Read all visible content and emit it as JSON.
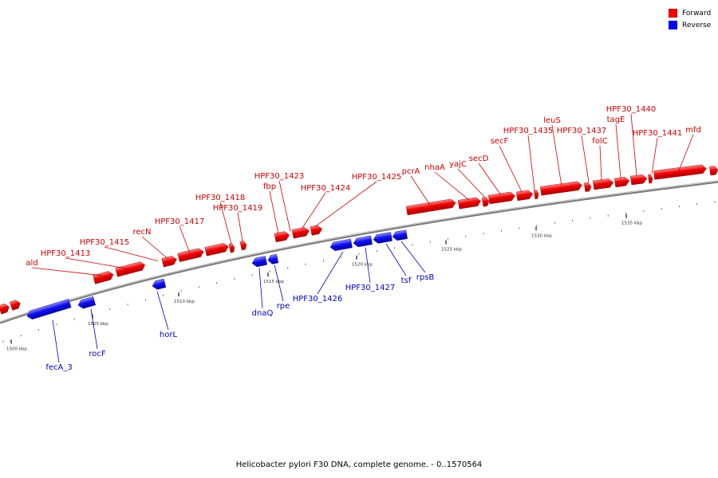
{
  "legend": {
    "forward_label": "Forward",
    "reverse_label": "Reverse",
    "forward_color": "#ff0000",
    "reverse_color": "#0000ff"
  },
  "caption": "Helicobacter pylori F30 DNA, complete genome. - 0..1570564",
  "ticks": [
    {
      "label": "1500 kbp",
      "pos": 1500
    },
    {
      "label": "1505 kbp",
      "pos": 1505
    },
    {
      "label": "1510 kbp",
      "pos": 1510
    },
    {
      "label": "1515 kbp",
      "pos": 1515
    },
    {
      "label": "1520 kbp",
      "pos": 1520
    },
    {
      "label": "1525 kbp",
      "pos": 1525
    },
    {
      "label": "1530 kbp",
      "pos": 1530
    },
    {
      "label": "1535 kbp",
      "pos": 1535
    }
  ],
  "forward_genes": [
    {
      "label": "ald"
    },
    {
      "label": "HPF30_1413"
    },
    {
      "label": "HPF30_1415"
    },
    {
      "label": "recN"
    },
    {
      "label": "HPF30_1417"
    },
    {
      "label": "HPF30_1418"
    },
    {
      "label": "HPF30_1419"
    },
    {
      "label": "fbp"
    },
    {
      "label": "HPF30_1423"
    },
    {
      "label": "HPF30_1424"
    },
    {
      "label": "HPF30_1425"
    },
    {
      "label": "pcrA"
    },
    {
      "label": "nhaA"
    },
    {
      "label": "yajC"
    },
    {
      "label": "secD"
    },
    {
      "label": "secF"
    },
    {
      "label": "HPF30_1435"
    },
    {
      "label": "leuS"
    },
    {
      "label": "HPF30_1437"
    },
    {
      "label": "folC"
    },
    {
      "label": "tagE"
    },
    {
      "label": "HPF30_1440"
    },
    {
      "label": "HPF30_1441"
    },
    {
      "label": "mfd"
    }
  ],
  "reverse_genes": [
    {
      "label": "fecA_3"
    },
    {
      "label": "rocF"
    },
    {
      "label": "horL"
    },
    {
      "label": "dnaQ"
    },
    {
      "label": "rpe"
    },
    {
      "label": "HPF30_1426"
    },
    {
      "label": "HPF30_1427"
    },
    {
      "label": "tsf"
    },
    {
      "label": "rpsB"
    }
  ]
}
